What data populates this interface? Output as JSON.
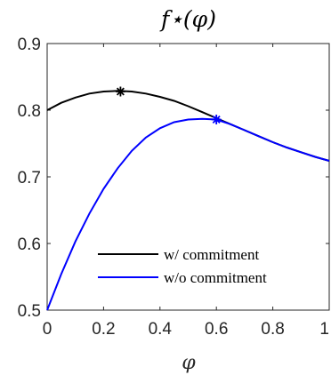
{
  "chart_data": {
    "type": "line",
    "title": "f⋆(φ)",
    "xlabel": "φ",
    "ylabel": "",
    "xlim": [
      0,
      1
    ],
    "ylim": [
      0.5,
      0.9
    ],
    "xticks": [
      0,
      0.2,
      0.4,
      0.6,
      0.8,
      1
    ],
    "xtick_labels": [
      "0",
      "0.2",
      "0.4",
      "0.6",
      "0.8",
      "1"
    ],
    "yticks": [
      0.5,
      0.6,
      0.7,
      0.8,
      0.9
    ],
    "ytick_labels": [
      "0.5",
      "0.6",
      "0.7",
      "0.8",
      "0.9"
    ],
    "grid": false,
    "legend_position": "bottom-right",
    "series": [
      {
        "name": "w/ commitment",
        "color": "#000000",
        "x": [
          0,
          0.05,
          0.1,
          0.15,
          0.2,
          0.25,
          0.3,
          0.35,
          0.4,
          0.45,
          0.5,
          0.55,
          0.6,
          0.65,
          0.7,
          0.75,
          0.8,
          0.85,
          0.9,
          0.95,
          1.0
        ],
        "y": [
          0.8,
          0.811,
          0.819,
          0.825,
          0.828,
          0.829,
          0.828,
          0.825,
          0.82,
          0.814,
          0.806,
          0.797,
          0.788,
          0.779,
          0.77,
          0.761,
          0.752,
          0.744,
          0.737,
          0.73,
          0.724
        ],
        "marker": {
          "x": 0.26,
          "y": 0.828
        }
      },
      {
        "name": "w/o commitment",
        "color": "#0000ff",
        "x": [
          0,
          0.05,
          0.1,
          0.15,
          0.2,
          0.25,
          0.3,
          0.35,
          0.4,
          0.45,
          0.5,
          0.55,
          0.6,
          0.65,
          0.7,
          0.75,
          0.8,
          0.85,
          0.9,
          0.95,
          1.0
        ],
        "y": [
          0.5,
          0.554,
          0.603,
          0.645,
          0.682,
          0.713,
          0.739,
          0.759,
          0.773,
          0.782,
          0.786,
          0.787,
          0.786,
          0.779,
          0.77,
          0.761,
          0.752,
          0.744,
          0.737,
          0.73,
          0.724
        ],
        "marker": {
          "x": 0.6,
          "y": 0.786
        }
      }
    ]
  }
}
